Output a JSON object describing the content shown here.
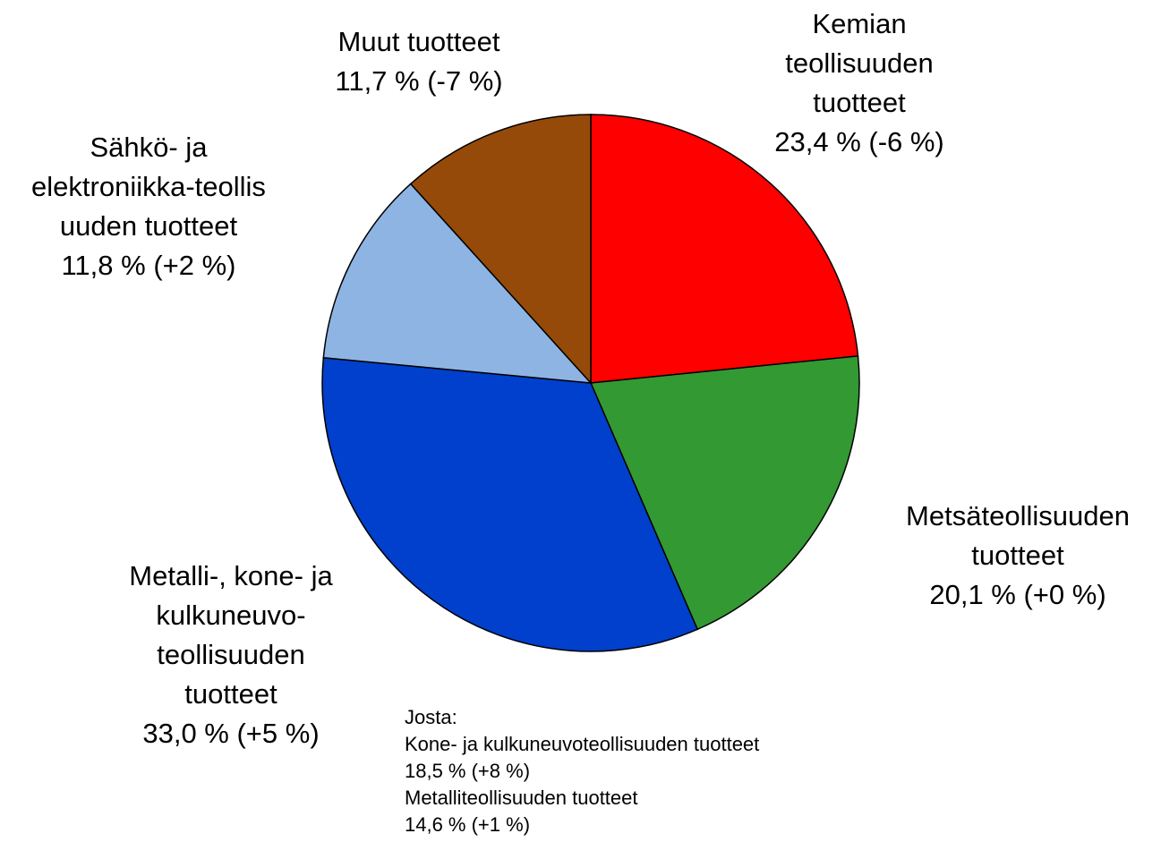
{
  "chart_data": {
    "type": "pie",
    "categories": [
      "Kemian\nteollisuuden\ntuotteet",
      "Metsäteollisuuden\ntuotteet",
      "Metalli-, kone- ja\nkulkuneuvo-\nteollisuuden\ntuotteet",
      "Sähkö- ja\nelektroniikka-teollis\nuuden tuotteet",
      "Muut tuotteet"
    ],
    "values": [
      23.4,
      20.1,
      33.0,
      11.8,
      11.7
    ],
    "value_labels": [
      "23,4 % (-6 %)",
      "20,1 % (+0 %)",
      "33,0 % (+5 %)",
      "11,8 % (+2 %)",
      "11,7 % (-7 %)"
    ],
    "colors": [
      "#ff0000",
      "#339933",
      "#0040cc",
      "#8eb4e3",
      "#954a09"
    ],
    "annotations": [
      "Josta:",
      "Kone- ja kulkuneuvoteollisuuden tuotteet",
      "18,5 % (+8 %)",
      "Metalliteollisuuden tuotteet",
      "14,6 % (+1 %)"
    ]
  }
}
